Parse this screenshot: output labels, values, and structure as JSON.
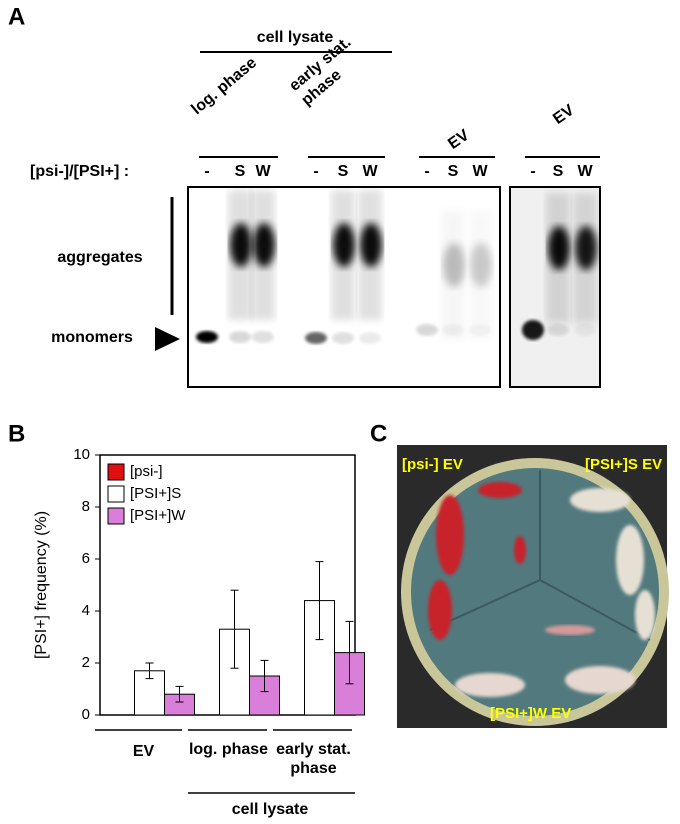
{
  "panel_a": {
    "label": "A",
    "group": "cell lysate",
    "conditions": [
      "log. phase",
      "early stat. phase",
      "EV",
      "EV"
    ],
    "lane_prefix": "[psi-]/[PSI+] :",
    "lanes": [
      "-",
      "S",
      "W"
    ],
    "aggregates": "aggregates",
    "monomers": "monomers"
  },
  "chart_data": {
    "type": "bar",
    "label": "B",
    "ylabel": "[PSI+] frequency (%)",
    "categories": [
      "EV",
      "log. phase",
      "early stat. phase"
    ],
    "group_label": "cell lysate",
    "series": [
      {
        "name": "[psi-]",
        "color": "#e01010",
        "values": [
          0,
          0,
          0
        ]
      },
      {
        "name": "[PSI+]S",
        "color": "#ffffff",
        "values": [
          1.7,
          3.3,
          4.4
        ],
        "errors": [
          0.3,
          1.5,
          1.5
        ]
      },
      {
        "name": "[PSI+]W",
        "color": "#d97ed9",
        "values": [
          0.8,
          1.5,
          2.4
        ],
        "errors": [
          0.3,
          0.6,
          1.2
        ]
      }
    ],
    "ylim": [
      0,
      10
    ],
    "yticks": [
      0,
      2,
      4,
      6,
      8,
      10
    ],
    "legend": "upper left"
  },
  "panel_c": {
    "label": "C",
    "plate_labels": [
      "[psi-] EV",
      "[PSI+]S EV",
      "[PSI+]W EV"
    ]
  }
}
